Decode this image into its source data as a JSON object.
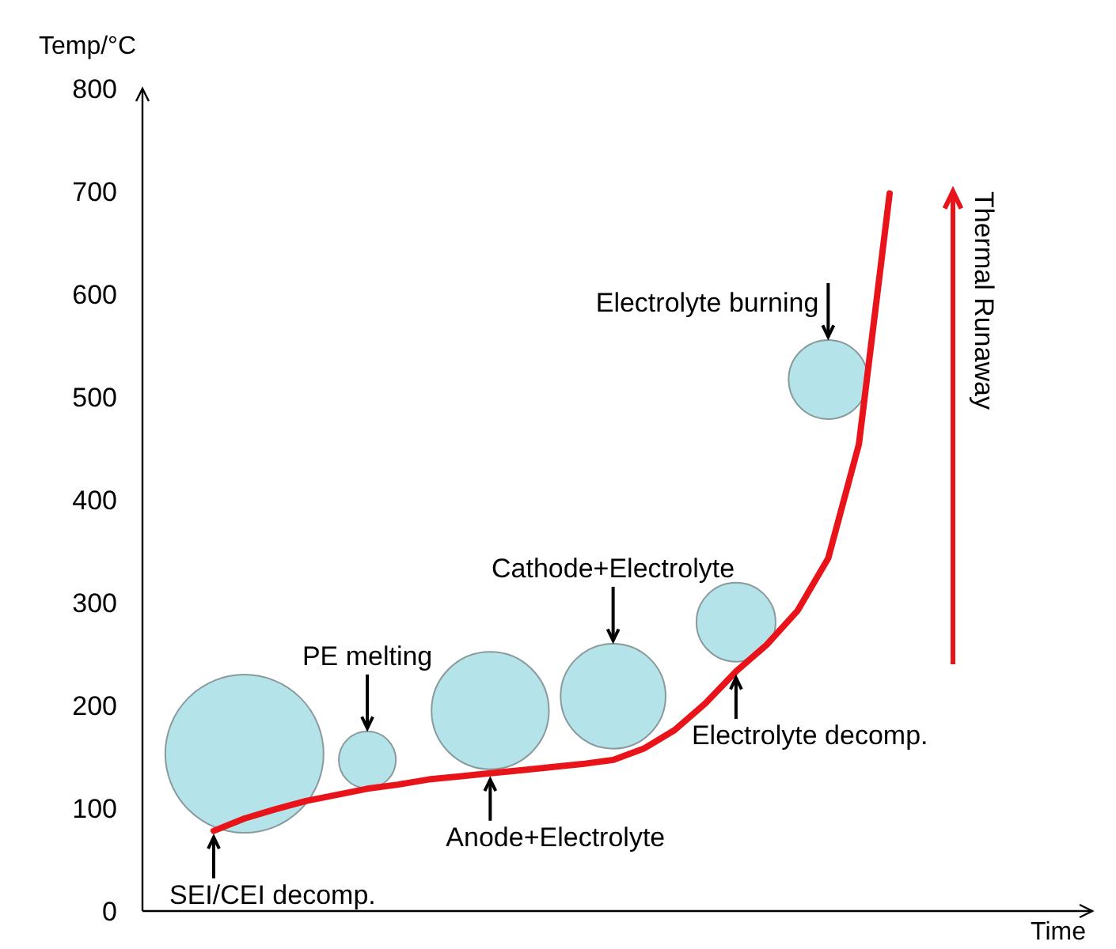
{
  "chart_data": {
    "type": "line",
    "ylabel": "Temp/°C",
    "xlabel": "Time",
    "categories": [
      null,
      null,
      null,
      null,
      null,
      null,
      null,
      null,
      null,
      null,
      null,
      null,
      null,
      null,
      null,
      null,
      null,
      null,
      null,
      null,
      null,
      null,
      null
    ],
    "ylim": [
      0,
      800
    ],
    "yticks": [
      0,
      100,
      200,
      300,
      400,
      500,
      600,
      700,
      800
    ],
    "grid": false,
    "line_style": "solid",
    "series": [
      {
        "color": "#e8141a",
        "values": [
          78,
          90,
          99,
          107,
          113,
          119,
          123,
          128,
          131,
          134,
          137,
          140,
          143,
          147,
          158,
          176,
          202,
          233,
          259,
          292,
          343,
          454,
          698
        ]
      },
      {
        "type": "bubble",
        "color": "#b4e3ea",
        "values": [
          null,
          153,
          null,
          null,
          null,
          147,
          null,
          null,
          null,
          195,
          null,
          null,
          null,
          209,
          null,
          null,
          null,
          281,
          null,
          null,
          517,
          null,
          null
        ],
        "sizes": [
          null,
          1,
          null,
          null,
          null,
          0.13,
          null,
          null,
          null,
          0.55,
          null,
          null,
          null,
          0.44,
          null,
          null,
          null,
          0.25,
          null,
          null,
          0.25,
          null,
          null
        ]
      }
    ],
    "annotations": [
      "SEI/CEI decomp.",
      "PE melting",
      "Anode+Electrolyte",
      "Cathode+Electrolyte",
      "Electrolyte decomp.",
      "Electrolyte burning",
      "Thermal Runaway"
    ]
  }
}
